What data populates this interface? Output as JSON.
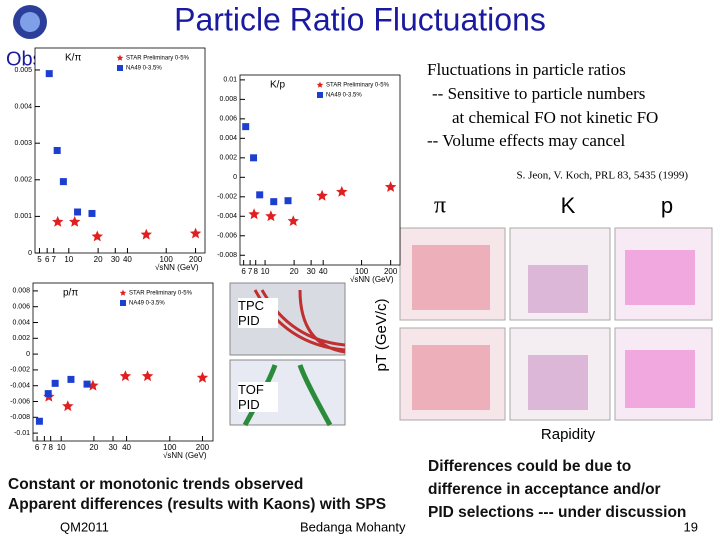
{
  "header": {
    "title": "Particle Ratio Fluctuations",
    "subtitle": "Observations:"
  },
  "notes": {
    "lines": [
      "Fluctuations in particle ratios",
      "-- Sensitive to particle numbers",
      "at chemical FO not kinetic FO",
      "-- Volume effects may cancel"
    ],
    "citation": "S. Jeon, V. Koch, PRL 83, 5435 (1999)"
  },
  "pid_labels": {
    "pion": "π",
    "kaon": "K",
    "proton": "p",
    "tpc": "TPC PID",
    "tof": "TOF PID",
    "pt_axis": "pT (GeV/c)",
    "rapidity": "Rapidity"
  },
  "conclusions": {
    "left": [
      "Constant or monotonic trends observed",
      "Apparent differences (results with Kaons) with SPS"
    ],
    "right": [
      "Differences could be due to",
      "difference in acceptance and/or",
      "PID selections --- under discussion"
    ]
  },
  "footer": {
    "conference": "QM2011",
    "author": "Bedanga Mohanty",
    "page": "19"
  },
  "chart_data": [
    {
      "type": "scatter",
      "title": "K/π",
      "xlabel": "√sNN (GeV)",
      "log_x": true,
      "xlim": [
        4.5,
        250
      ],
      "xticks": [
        5,
        6,
        7,
        10,
        20,
        30,
        40,
        100,
        200
      ],
      "ylim": [
        0,
        0.0056
      ],
      "yticks": [
        0,
        0.001,
        0.002,
        0.003,
        0.004,
        0.005
      ],
      "series": [
        {
          "name": "STAR Preliminary 0-5%",
          "color": "#e02020",
          "marker": "star",
          "x": [
            7.7,
            11.5,
            19.6,
            62.4,
            200
          ],
          "values": [
            0.00085,
            0.00085,
            0.00045,
            0.0005,
            0.00053
          ]
        },
        {
          "name": "NA49 0-3.5%",
          "color": "#1c3fd0",
          "marker": "square",
          "x": [
            6.3,
            7.6,
            8.8,
            12.3,
            17.3
          ],
          "values": [
            0.0049,
            0.0028,
            0.00195,
            0.00112,
            0.00108
          ]
        }
      ]
    },
    {
      "type": "scatter",
      "title": "K/p",
      "xlabel": "√sNN (GeV)",
      "log_x": true,
      "xlim": [
        5.5,
        250
      ],
      "xticks": [
        6,
        7,
        8,
        10,
        20,
        30,
        40,
        100,
        200
      ],
      "ylim": [
        -0.009,
        0.0105
      ],
      "yticks": [
        -0.008,
        -0.006,
        -0.004,
        -0.002,
        0,
        0.002,
        0.004,
        0.006,
        0.008,
        0.01
      ],
      "series": [
        {
          "name": "STAR Preliminary 0-5%",
          "color": "#e02020",
          "marker": "star",
          "x": [
            7.7,
            11.5,
            19.6,
            39,
            62.4,
            200
          ],
          "values": [
            -0.0038,
            -0.004,
            -0.0045,
            -0.0019,
            -0.0015,
            -0.001
          ]
        },
        {
          "name": "NA49 0-3.5%",
          "color": "#1c3fd0",
          "marker": "square",
          "x": [
            6.3,
            7.6,
            8.8,
            12.3,
            17.3
          ],
          "values": [
            0.0052,
            0.002,
            -0.0018,
            -0.0025,
            -0.0024
          ]
        }
      ]
    },
    {
      "type": "scatter",
      "title": "p/π",
      "xlabel": "√sNN (GeV)",
      "log_x": true,
      "xlim": [
        5.5,
        250
      ],
      "xticks": [
        6,
        7,
        8,
        10,
        20,
        30,
        40,
        100,
        200
      ],
      "ylim": [
        -0.011,
        0.009
      ],
      "yticks": [
        -0.01,
        -0.008,
        -0.006,
        -0.004,
        -0.002,
        0,
        0.002,
        0.004,
        0.006,
        0.008
      ],
      "series": [
        {
          "name": "STAR Preliminary 0-5%",
          "color": "#e02020",
          "marker": "star",
          "x": [
            7.7,
            11.5,
            19.6,
            39,
            62.4,
            200
          ],
          "values": [
            -0.0054,
            -0.0066,
            -0.004,
            -0.0028,
            -0.0028,
            -0.003
          ]
        },
        {
          "name": "NA49 0-3.5%",
          "color": "#1c3fd0",
          "marker": "square",
          "x": [
            6.3,
            7.6,
            8.8,
            12.3,
            17.3
          ],
          "values": [
            -0.0085,
            -0.005,
            -0.0037,
            -0.0032,
            -0.0038
          ]
        }
      ]
    }
  ]
}
